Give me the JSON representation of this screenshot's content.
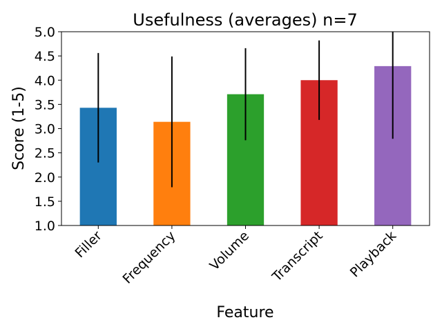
{
  "chart_data": {
    "type": "bar",
    "title": "Usefulness (averages) n=7",
    "xlabel": "Feature",
    "ylabel": "Score (1-5)",
    "ylim": [
      1.0,
      5.0
    ],
    "yticks": [
      "1.0",
      "1.5",
      "2.0",
      "2.5",
      "3.0",
      "3.5",
      "4.0",
      "4.5",
      "5.0"
    ],
    "grid": false,
    "categories": [
      "Filler",
      "Frequency",
      "Volume",
      "Transcript",
      "Playback"
    ],
    "values": [
      3.43,
      3.14,
      3.71,
      4.0,
      4.29
    ],
    "errors": [
      1.13,
      1.35,
      0.95,
      0.82,
      1.5
    ],
    "colors": [
      "#1f77b4",
      "#ff7f0e",
      "#2ca02c",
      "#d62728",
      "#9467bd"
    ],
    "error_color": "#000000"
  }
}
